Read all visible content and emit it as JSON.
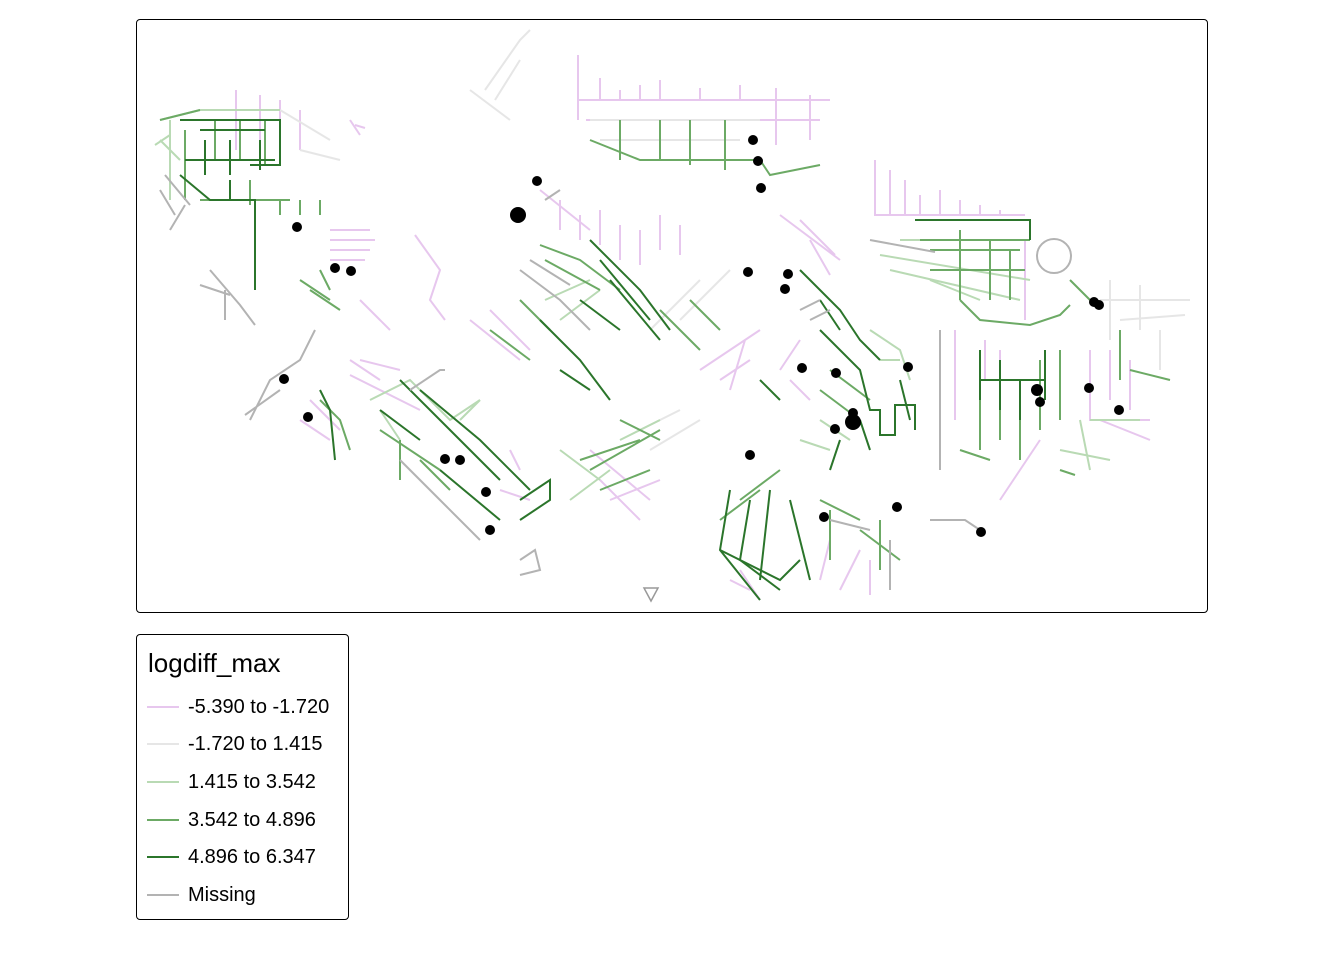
{
  "legend": {
    "title": "logdiff_max",
    "classes": [
      {
        "label": "-5.390 to -1.720",
        "color": "#e7c7ee"
      },
      {
        "label": "-1.720 to 1.415",
        "color": "#e6e6e6"
      },
      {
        "label": "1.415 to 3.542",
        "color": "#b9dab4"
      },
      {
        "label": "3.542 to 4.896",
        "color": "#6caa65"
      },
      {
        "label": "4.896 to 6.347",
        "color": "#2b752b"
      },
      {
        "label": "Missing",
        "color": "#b3b3b3"
      }
    ]
  },
  "map": {
    "point_color": "#000000"
  }
}
